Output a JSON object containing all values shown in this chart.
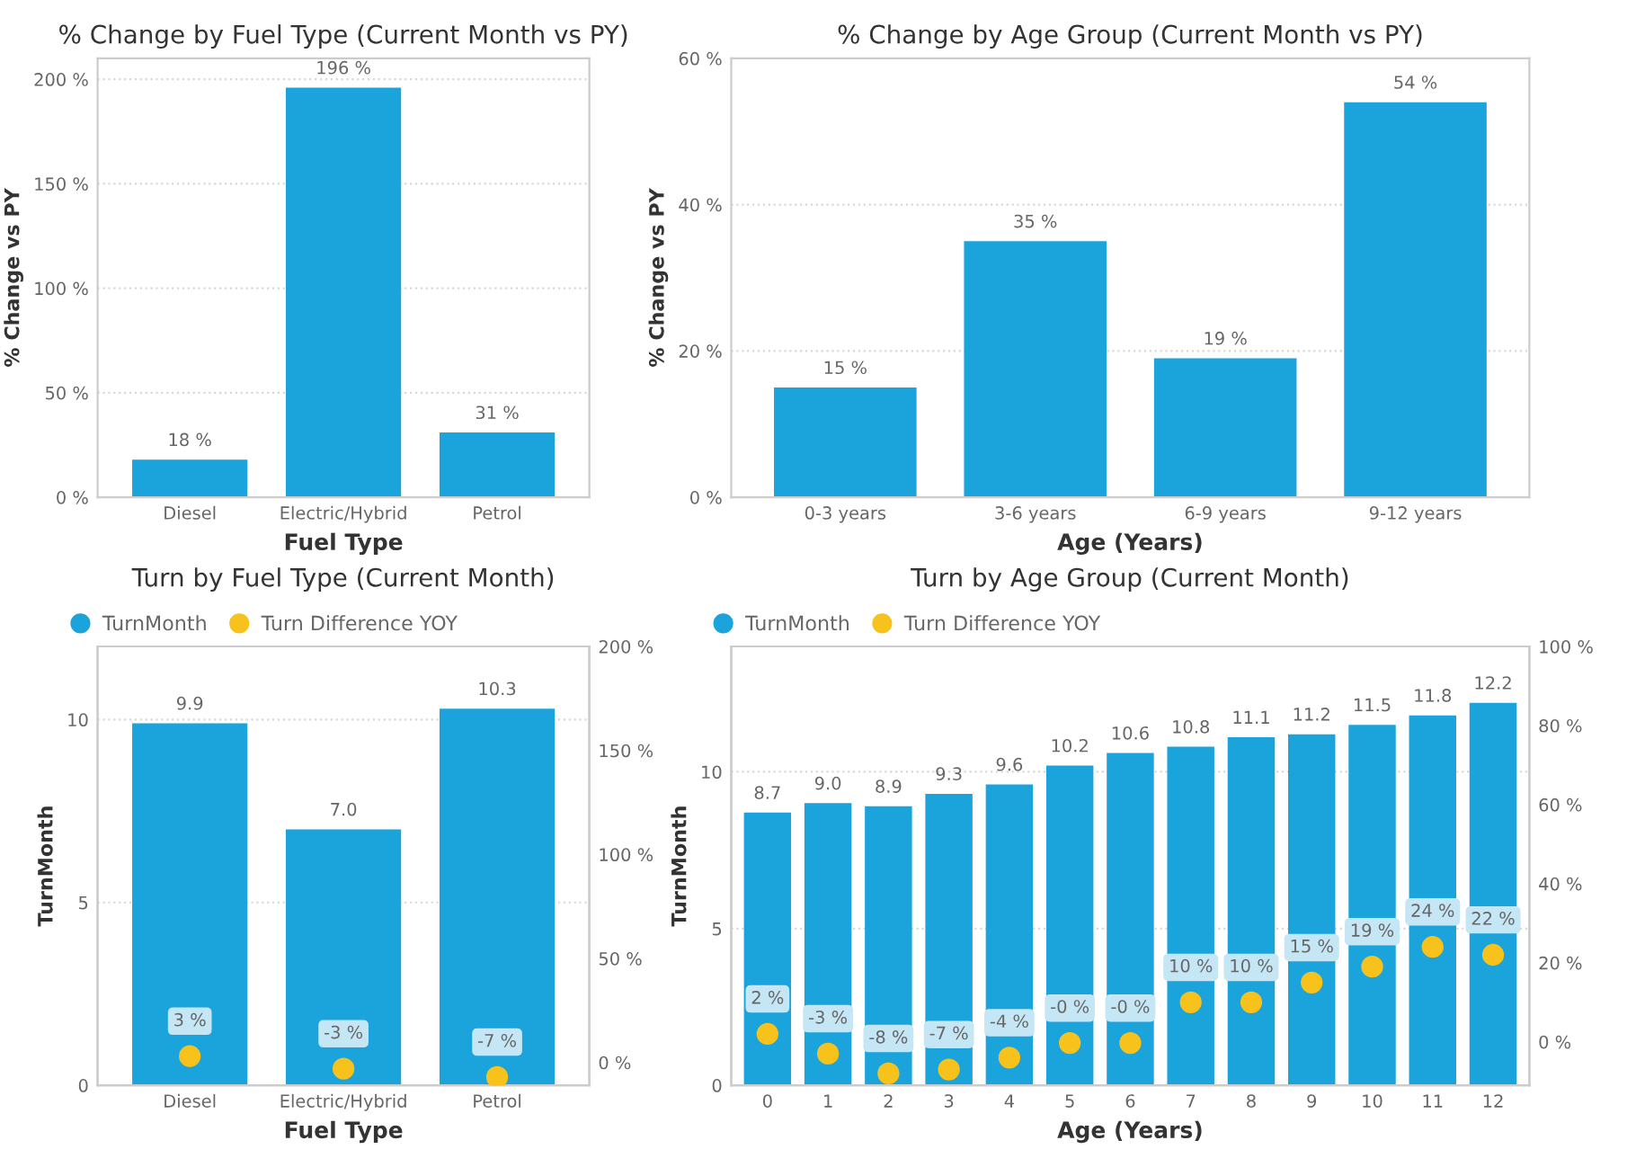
{
  "chart_data": [
    {
      "type": "bar",
      "title": "% Change by Fuel Type (Current Month vs PY)",
      "xlabel": "Fuel Type",
      "ylabel": "% Change vs PY",
      "categories": [
        "Diesel",
        "Electric/Hybrid",
        "Petrol"
      ],
      "series": [
        {
          "color": "#1ba3dc",
          "values": [
            18,
            196,
            31
          ],
          "value_labels": [
            "18 %",
            "196 %",
            "31 %"
          ]
        }
      ],
      "ylim": [
        0,
        210
      ],
      "yticks": [
        {
          "value": 0,
          "label": "0 %"
        },
        {
          "value": 50,
          "label": "50 %"
        },
        {
          "value": 100,
          "label": "100 %"
        },
        {
          "value": 150,
          "label": "150 %"
        },
        {
          "value": 200,
          "label": "200 %"
        }
      ],
      "grid": "y"
    },
    {
      "type": "bar",
      "title": "% Change by Age Group (Current Month vs PY)",
      "xlabel": "Age (Years)",
      "ylabel": "% Change vs PY",
      "categories": [
        "0-3 years",
        "3-6 years",
        "6-9 years",
        "9-12 years"
      ],
      "series": [
        {
          "color": "#1ba3dc",
          "values": [
            15,
            35,
            19,
            54
          ],
          "value_labels": [
            "15 %",
            "35 %",
            "19 %",
            "54 %"
          ]
        }
      ],
      "ylim": [
        0,
        60
      ],
      "yticks": [
        {
          "value": 0,
          "label": "0 %"
        },
        {
          "value": 20,
          "label": "20 %"
        },
        {
          "value": 40,
          "label": "40 %"
        },
        {
          "value": 60,
          "label": "60 %"
        }
      ],
      "grid": "y"
    },
    {
      "type": "bar",
      "title": "Turn by Fuel Type (Current Month)",
      "xlabel": "Fuel Type",
      "ylabel": "TurnMonth",
      "categories": [
        "Diesel",
        "Electric/Hybrid",
        "Petrol"
      ],
      "series": [
        {
          "name": "TurnMonth",
          "type": "bar",
          "color": "#1ba3dc",
          "values": [
            9.9,
            7.0,
            10.3
          ],
          "value_labels": [
            "9.9",
            "7.0",
            "10.3"
          ]
        },
        {
          "name": "Turn Difference YOY",
          "type": "scatter",
          "axis": "y2",
          "color": "#f7c21b",
          "values": [
            3,
            -3,
            -7
          ],
          "value_labels": [
            "3 %",
            "-3 %",
            "-7 %"
          ]
        }
      ],
      "ylim": [
        0,
        12
      ],
      "yticks": [
        0,
        5,
        10
      ],
      "y2lim": [
        -11,
        200
      ],
      "y2ticks": [
        {
          "value": 0,
          "label": "0 %"
        },
        {
          "value": 50,
          "label": "50 %"
        },
        {
          "value": 100,
          "label": "100 %"
        },
        {
          "value": 150,
          "label": "150 %"
        },
        {
          "value": 200,
          "label": "200 %"
        }
      ],
      "grid": "y",
      "legend": "top left",
      "marker": "circle"
    },
    {
      "type": "bar",
      "title": "Turn by Age Group (Current Month)",
      "xlabel": "Age (Years)",
      "ylabel": "TurnMonth",
      "categories": [
        "0",
        "1",
        "2",
        "3",
        "4",
        "5",
        "6",
        "7",
        "8",
        "9",
        "10",
        "11",
        "12"
      ],
      "series": [
        {
          "name": "TurnMonth",
          "type": "bar",
          "color": "#1ba3dc",
          "values": [
            8.7,
            9.0,
            8.9,
            9.3,
            9.6,
            10.2,
            10.6,
            10.8,
            11.1,
            11.2,
            11.5,
            11.8,
            12.2
          ],
          "value_labels": [
            "8.7",
            "9.0",
            "8.9",
            "9.3",
            "9.6",
            "10.2",
            "10.6",
            "10.8",
            "11.1",
            "11.2",
            "11.5",
            "11.8",
            "12.2"
          ]
        },
        {
          "name": "Turn Difference YOY",
          "type": "scatter",
          "axis": "y2",
          "color": "#f7c21b",
          "values": [
            2,
            -3,
            -8,
            -7,
            -4,
            -0.3,
            -0.3,
            10,
            10,
            15,
            19,
            24,
            22
          ],
          "value_labels": [
            "2 %",
            "-3 %",
            "-8 %",
            "-7 %",
            "-4 %",
            "-0 %",
            "-0 %",
            "10 %",
            "10 %",
            "15 %",
            "19 %",
            "24 %",
            "22 %"
          ]
        }
      ],
      "ylim": [
        0,
        14
      ],
      "yticks": [
        0,
        5,
        10
      ],
      "y2lim": [
        -11,
        100
      ],
      "y2ticks": [
        {
          "value": 0,
          "label": "0 %"
        },
        {
          "value": 20,
          "label": "20 %"
        },
        {
          "value": 40,
          "label": "40 %"
        },
        {
          "value": 60,
          "label": "60 %"
        },
        {
          "value": 80,
          "label": "80 %"
        },
        {
          "value": 100,
          "label": "100 %"
        }
      ],
      "grid": "y",
      "legend": "top left",
      "marker": "circle"
    }
  ]
}
